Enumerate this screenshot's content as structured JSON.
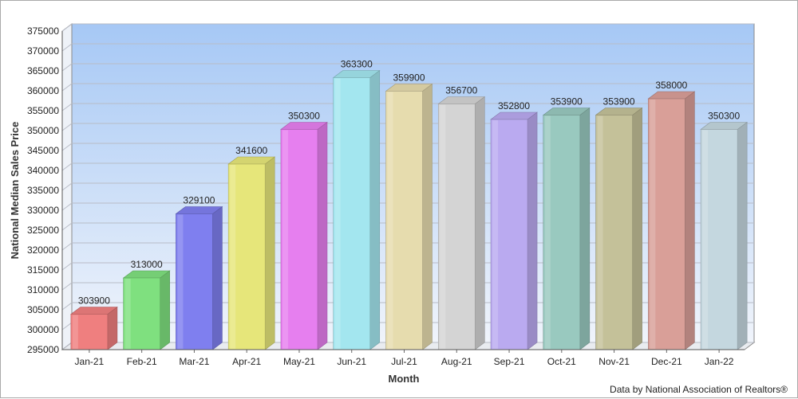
{
  "chart_data": {
    "type": "bar",
    "title": "",
    "xlabel": "Month",
    "ylabel": "National Median Sales Price",
    "categories": [
      "Jan-21",
      "Feb-21",
      "Mar-21",
      "Apr-21",
      "May-21",
      "Jun-21",
      "Jul-21",
      "Aug-21",
      "Sep-21",
      "Oct-21",
      "Nov-21",
      "Dec-21",
      "Jan-22"
    ],
    "values": [
      303900,
      313000,
      329100,
      341600,
      350300,
      363300,
      359900,
      356700,
      352800,
      353900,
      353900,
      358000,
      350300
    ],
    "ylim": [
      295000,
      375000
    ],
    "ytick_step": 5000,
    "grid": true,
    "bar_3d": true,
    "colors": [
      "#ef7f7f",
      "#7fe07f",
      "#7f7fef",
      "#e6e67a",
      "#e67fef",
      "#a3e6ef",
      "#e6dcae",
      "#d4d4d4",
      "#baaaf0",
      "#99c9bf",
      "#c4c199",
      "#d99f98",
      "#c4d7df"
    ],
    "background_gradient": [
      "#a6c8f5",
      "#f0f4fb"
    ]
  },
  "footer": {
    "credit": "Data by National Association of Realtors®"
  }
}
